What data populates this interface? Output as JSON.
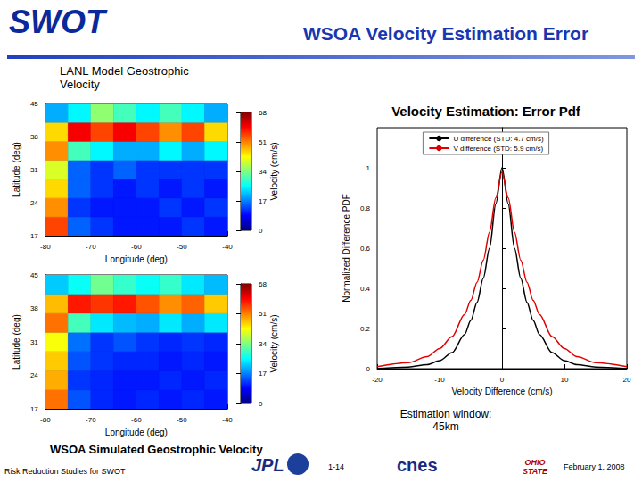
{
  "header": {
    "title": "SWOT",
    "subtitle": "WSOA Velocity Estimation Error"
  },
  "footer": {
    "text": "Risk Reduction Studies for SWOT",
    "page": "1-14",
    "date": "February 1, 2008",
    "logos": [
      "JPL",
      "cnes",
      "OHIO STATE"
    ]
  },
  "chart_data": [
    {
      "type": "heatmap",
      "title": "LANL Model Geostrophic Velocity",
      "xlabel": "Longitude (deg)",
      "ylabel": "Latitude (deg)",
      "xlim": [
        -80,
        -40
      ],
      "xticks": [
        -80,
        -70,
        -60,
        -50,
        -40
      ],
      "ylim": [
        17,
        45
      ],
      "yticks": [
        17,
        24,
        31,
        38,
        45
      ],
      "x_edges": [
        -80,
        -75,
        -70,
        -65,
        -60,
        -55,
        -50,
        -45,
        -40
      ],
      "y_edges": [
        17,
        21,
        25,
        29,
        33,
        37,
        41,
        45
      ],
      "cells": [
        [
          55,
          15,
          12,
          10,
          10,
          10,
          12,
          10
        ],
        [
          50,
          12,
          10,
          10,
          10,
          12,
          10,
          12
        ],
        [
          45,
          15,
          12,
          10,
          12,
          10,
          12,
          10
        ],
        [
          40,
          15,
          12,
          15,
          12,
          12,
          12,
          12
        ],
        [
          50,
          30,
          25,
          20,
          20,
          25,
          20,
          25
        ],
        [
          45,
          60,
          55,
          60,
          55,
          50,
          55,
          45
        ],
        [
          20,
          25,
          35,
          30,
          25,
          30,
          25,
          20
        ]
      ],
      "colorbar": {
        "label": "Velocity (cm/s)",
        "range": [
          0,
          68
        ],
        "ticks": [
          0,
          17,
          34,
          51,
          68
        ]
      },
      "grid": false
    },
    {
      "type": "heatmap",
      "title": "WSOA Simulated Geostrophic Velocity",
      "xlabel": "Longitude (deg)",
      "ylabel": "Latitude (deg)",
      "xlim": [
        -80,
        -40
      ],
      "xticks": [
        -80,
        -70,
        -60,
        -50,
        -40
      ],
      "ylim": [
        17,
        45
      ],
      "yticks": [
        17,
        24,
        31,
        38,
        45
      ],
      "x_edges": [
        -80,
        -75,
        -70,
        -65,
        -60,
        -55,
        -50,
        -45,
        -40
      ],
      "y_edges": [
        17,
        21,
        25,
        29,
        33,
        37,
        41,
        45
      ],
      "cells": [
        [
          52,
          14,
          11,
          10,
          11,
          10,
          11,
          10
        ],
        [
          48,
          12,
          11,
          10,
          10,
          11,
          10,
          11
        ],
        [
          46,
          14,
          12,
          11,
          11,
          10,
          11,
          10
        ],
        [
          42,
          16,
          12,
          14,
          12,
          11,
          12,
          11
        ],
        [
          52,
          30,
          24,
          21,
          20,
          24,
          20,
          24
        ],
        [
          47,
          58,
          56,
          58,
          54,
          50,
          53,
          46
        ],
        [
          22,
          26,
          33,
          29,
          26,
          29,
          24,
          21
        ]
      ],
      "colorbar": {
        "label": "Velocity (cm/s)",
        "range": [
          0,
          68
        ],
        "ticks": [
          0,
          17,
          34,
          51,
          68
        ]
      },
      "grid": false
    },
    {
      "type": "line",
      "title": "Velocity Estimation: Error Pdf",
      "xlabel": "Velocity Difference (cm/s)",
      "ylabel": "Normalized Difference PDF",
      "x": [
        -20,
        -15,
        -12,
        -10,
        -8,
        -6,
        -5,
        -4,
        -3,
        -2,
        -1,
        0,
        1,
        2,
        3,
        4,
        5,
        6,
        8,
        10,
        12,
        15,
        20
      ],
      "series": [
        {
          "name": "U difference (STD: 4.7 cm/s)",
          "color": "#000000",
          "values": [
            0,
            0.008,
            0.02,
            0.04,
            0.08,
            0.17,
            0.24,
            0.33,
            0.45,
            0.6,
            0.82,
            1,
            0.82,
            0.6,
            0.45,
            0.33,
            0.24,
            0.17,
            0.08,
            0.04,
            0.02,
            0.008,
            0
          ]
        },
        {
          "name": "V difference (STD: 5.9 cm/s)",
          "color": "#e00000",
          "values": [
            0.01,
            0.03,
            0.06,
            0.1,
            0.16,
            0.27,
            0.34,
            0.43,
            0.54,
            0.68,
            0.85,
            0.98,
            0.85,
            0.68,
            0.54,
            0.43,
            0.34,
            0.27,
            0.16,
            0.1,
            0.06,
            0.03,
            0.01
          ]
        }
      ],
      "xlim": [
        -20,
        20
      ],
      "xticks": [
        -20,
        -10,
        0,
        10,
        20
      ],
      "ylim": [
        0,
        1.2
      ],
      "yticks": [
        0,
        0.2,
        0.4,
        0.6,
        0.8,
        1
      ],
      "legend": "upper center",
      "grid": false,
      "annotation": "Estimation window: 45km"
    }
  ]
}
